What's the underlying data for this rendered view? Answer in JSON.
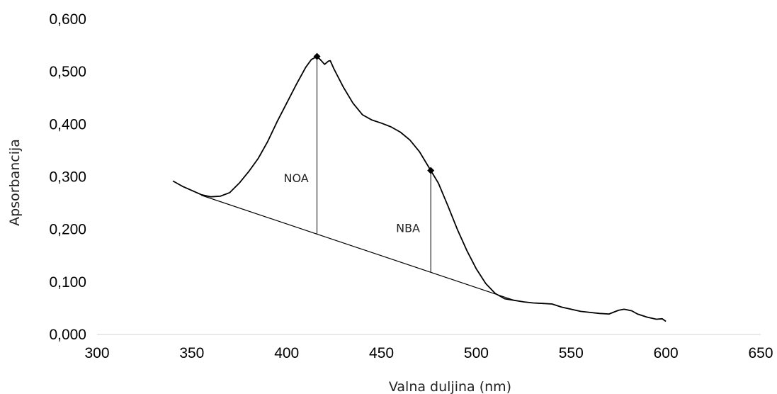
{
  "chart_data": {
    "type": "line",
    "title": "",
    "xlabel": "Valna duljina (nm)",
    "ylabel": "Apsorbancija",
    "xlim": [
      300,
      650
    ],
    "ylim": [
      0,
      0.6
    ],
    "xticks": [
      300,
      350,
      400,
      450,
      500,
      550,
      600,
      650
    ],
    "xtick_labels": [
      "300",
      "350",
      "400",
      "450",
      "500",
      "550",
      "600",
      "650"
    ],
    "yticks": [
      0,
      0.1,
      0.2,
      0.3,
      0.4,
      0.5,
      0.6
    ],
    "ytick_labels": [
      "0,000",
      "0,100",
      "0,200",
      "0,300",
      "0,400",
      "0,500",
      "0,600"
    ],
    "grid": false,
    "legend": "none",
    "series": [
      {
        "role": "spectrum",
        "x": [
          340,
          345,
          350,
          355,
          360,
          365,
          370,
          375,
          380,
          385,
          390,
          395,
          400,
          405,
          410,
          413,
          416,
          418,
          420,
          422,
          423,
          425,
          430,
          435,
          440,
          445,
          450,
          455,
          460,
          465,
          470,
          476,
          480,
          485,
          490,
          495,
          500,
          505,
          510,
          515,
          520,
          525,
          530,
          535,
          540,
          545,
          550,
          555,
          560,
          565,
          570,
          575,
          578,
          582,
          585,
          590,
          595,
          598,
          600
        ],
        "y": [
          0.292,
          0.282,
          0.274,
          0.266,
          0.262,
          0.263,
          0.27,
          0.288,
          0.31,
          0.335,
          0.367,
          0.405,
          0.44,
          0.475,
          0.508,
          0.523,
          0.529,
          0.522,
          0.514,
          0.52,
          0.521,
          0.505,
          0.47,
          0.44,
          0.418,
          0.408,
          0.402,
          0.395,
          0.385,
          0.37,
          0.348,
          0.312,
          0.288,
          0.245,
          0.2,
          0.16,
          0.125,
          0.097,
          0.078,
          0.068,
          0.065,
          0.062,
          0.06,
          0.059,
          0.058,
          0.052,
          0.048,
          0.044,
          0.042,
          0.04,
          0.039,
          0.046,
          0.048,
          0.045,
          0.039,
          0.033,
          0.029,
          0.03,
          0.025
        ]
      },
      {
        "role": "baseline",
        "x": [
          355,
          520
        ],
        "y": [
          0.265,
          0.065
        ]
      }
    ],
    "markers": [
      {
        "x": 416,
        "y": 0.529
      },
      {
        "x": 476,
        "y": 0.312
      }
    ],
    "annotations": [
      {
        "text": "NOA",
        "x": 416,
        "y_top": 0.529,
        "y_bottom": 0.19,
        "label_x": 405,
        "label_y": 0.29
      },
      {
        "text": "NBA",
        "x": 476,
        "y_top": 0.312,
        "y_bottom": 0.119,
        "label_x": 464,
        "label_y": 0.195
      }
    ]
  }
}
